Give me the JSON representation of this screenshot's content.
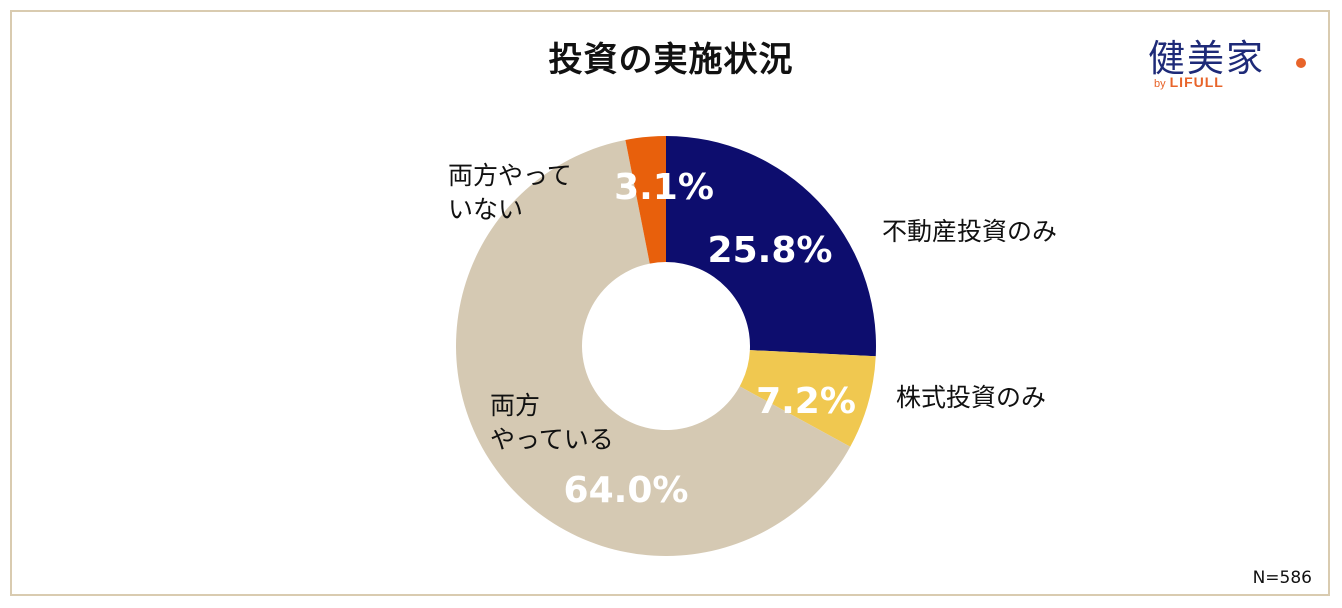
{
  "chart_data": {
    "type": "pie",
    "variant": "donut",
    "title": "投資の実施状況",
    "note": "N=586",
    "slices": [
      {
        "label": "不動産投資のみ",
        "value": 25.8,
        "value_label": "25.8%",
        "color": "#0d0d6e"
      },
      {
        "label": "株式投資のみ",
        "value": 7.2,
        "value_label": "7.2%",
        "color": "#f0c850"
      },
      {
        "label": "両方\nやっている",
        "value": 64.0,
        "value_label": "64.0%",
        "color": "#d5c9b3"
      },
      {
        "label": "両方やって\nいない",
        "value": 3.1,
        "value_label": "3.1%",
        "color": "#e8600c"
      }
    ],
    "start": "top",
    "direction": "clockwise"
  },
  "logo": {
    "main": "健美家",
    "by": "by",
    "brand": "LIFULL",
    "color_main": "#1e2a78",
    "color_accent": "#e8642a"
  }
}
